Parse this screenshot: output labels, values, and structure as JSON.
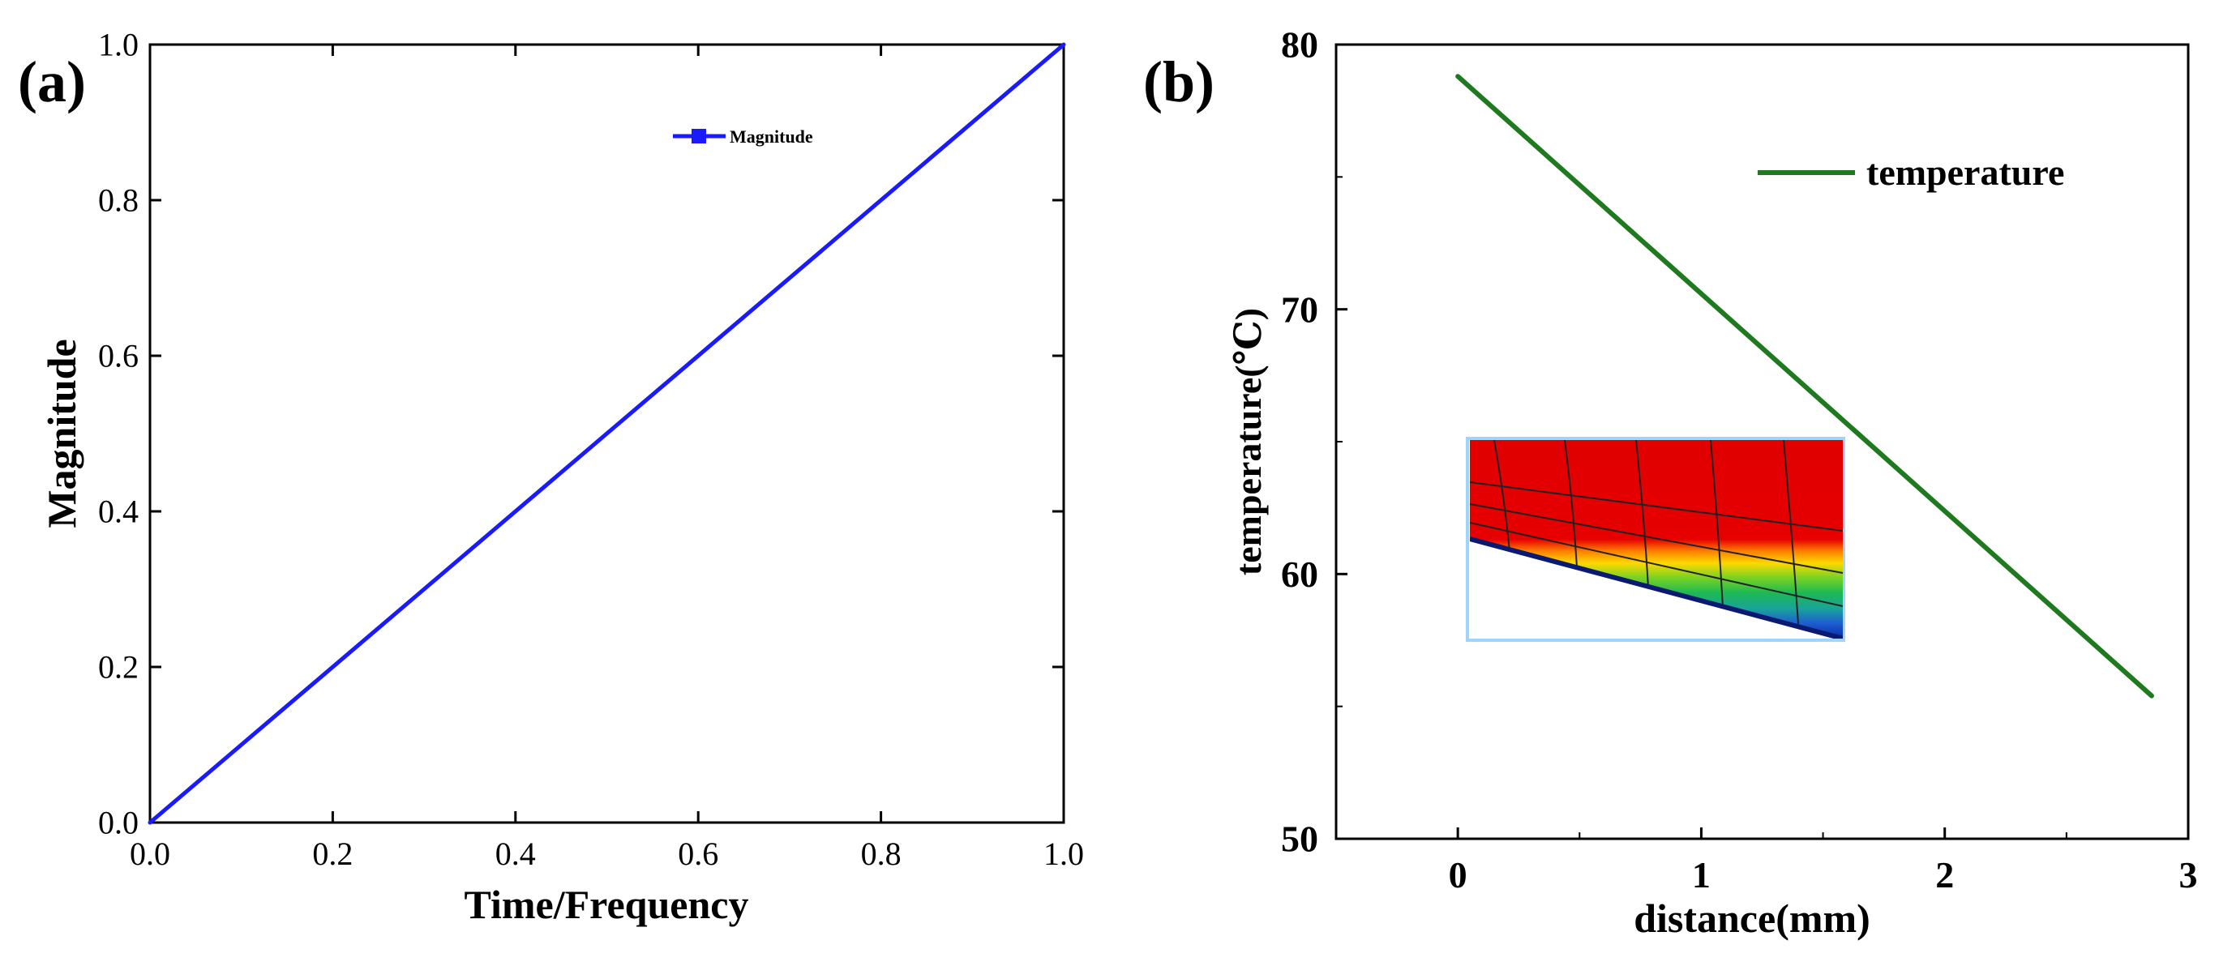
{
  "chart_data": [
    {
      "panel_label": "(a)",
      "type": "line",
      "title": "",
      "xlabel": "Time/Frequency",
      "ylabel": "Magnitude",
      "xlim": [
        0.0,
        1.0
      ],
      "ylim": [
        0.0,
        1.0
      ],
      "xticks": [
        "0.0",
        "0.2",
        "0.4",
        "0.6",
        "0.8",
        "1.0"
      ],
      "yticks": [
        "0.0",
        "0.2",
        "0.4",
        "0.6",
        "0.8",
        "1.0"
      ],
      "grid": false,
      "legend_position": "top-right",
      "series": [
        {
          "name": "Magnitude",
          "color": "#1a1aff",
          "marker": "square",
          "x": [
            0.0,
            1.0
          ],
          "y": [
            0.0,
            1.0
          ]
        }
      ]
    },
    {
      "panel_label": "(b)",
      "type": "line",
      "title": "",
      "xlabel": "distance(mm)",
      "ylabel": "temperature(℃)",
      "xlim": [
        -0.5,
        3.0
      ],
      "ylim": [
        50,
        80
      ],
      "xticks": [
        "0",
        "1",
        "2",
        "3"
      ],
      "yticks": [
        "50",
        "60",
        "70",
        "80"
      ],
      "grid": false,
      "legend_position": "top-right",
      "inset": "color-contour-mesh",
      "series": [
        {
          "name": "temperature",
          "color": "#1f7a1f",
          "x": [
            0.0,
            2.85
          ],
          "y": [
            78.8,
            55.4
          ]
        }
      ]
    }
  ]
}
